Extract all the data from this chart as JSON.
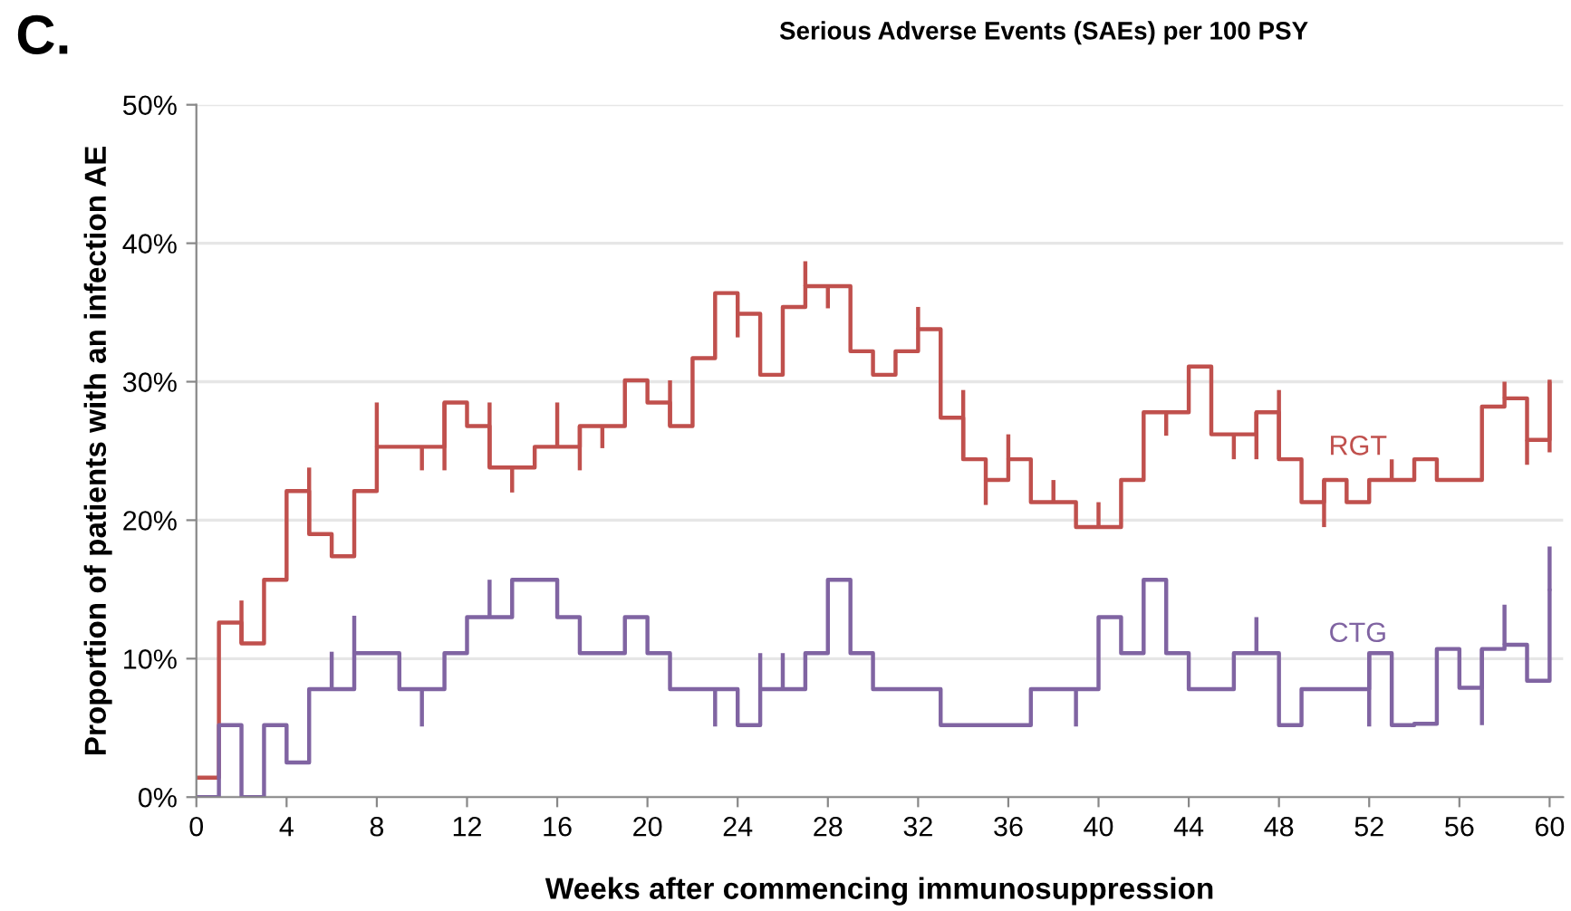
{
  "chart_data": {
    "type": "step",
    "title": "Serious Adverse Events (SAEs) per 100 PSY",
    "annotations": [
      "C."
    ],
    "xlabel": "Weeks after commencing immunosuppression",
    "ylabel": "Proportion of patients with an infection AE",
    "x": [
      0,
      1,
      2,
      3,
      4,
      5,
      6,
      7,
      8,
      9,
      10,
      11,
      12,
      13,
      14,
      15,
      16,
      17,
      18,
      19,
      20,
      21,
      22,
      23,
      24,
      25,
      26,
      27,
      28,
      29,
      30,
      31,
      32,
      33,
      34,
      35,
      36,
      37,
      38,
      39,
      40,
      41,
      42,
      43,
      44,
      45,
      46,
      47,
      48,
      49,
      50,
      51,
      52,
      53,
      54,
      55,
      56,
      57,
      58,
      59,
      60
    ],
    "series": [
      {
        "name": "RGT",
        "color": "#c0504d",
        "values": [
          1.4,
          12.6,
          11.1,
          15.7,
          22.1,
          19.0,
          17.4,
          22.1,
          25.3,
          25.3,
          25.3,
          28.5,
          26.8,
          23.8,
          23.8,
          25.3,
          25.3,
          26.8,
          26.8,
          30.1,
          28.5,
          26.8,
          31.7,
          36.4,
          34.9,
          30.5,
          35.4,
          36.9,
          36.9,
          32.2,
          30.5,
          32.2,
          33.8,
          27.4,
          24.4,
          22.9,
          24.4,
          21.3,
          21.3,
          19.5,
          19.5,
          22.9,
          27.8,
          27.8,
          31.1,
          26.2,
          26.2,
          27.8,
          24.4,
          21.3,
          22.9,
          21.3,
          22.9,
          22.9,
          24.4,
          22.9,
          22.9,
          28.2,
          28.8,
          25.8,
          30.0
        ],
        "errors": [
          null,
          null,
          [
            11.1,
            14.2
          ],
          null,
          null,
          [
            19.0,
            23.8
          ],
          null,
          null,
          [
            25.3,
            28.5
          ],
          null,
          [
            23.6,
            25.3
          ],
          [
            23.6,
            28.5
          ],
          null,
          [
            23.8,
            28.5
          ],
          [
            22.0,
            23.8
          ],
          null,
          [
            25.3,
            28.5
          ],
          [
            23.6,
            26.8
          ],
          [
            25.2,
            26.8
          ],
          null,
          null,
          [
            26.8,
            30.1
          ],
          null,
          null,
          [
            33.2,
            34.9
          ],
          null,
          null,
          [
            36.9,
            38.7
          ],
          [
            35.3,
            36.9
          ],
          null,
          null,
          null,
          [
            33.8,
            35.4
          ],
          null,
          [
            24.4,
            29.4
          ],
          [
            21.1,
            22.9
          ],
          [
            24.4,
            26.2
          ],
          null,
          [
            21.3,
            22.9
          ],
          null,
          [
            19.5,
            21.3
          ],
          null,
          null,
          [
            26.1,
            27.8
          ],
          null,
          null,
          [
            24.4,
            26.2
          ],
          [
            24.4,
            27.8
          ],
          [
            24.4,
            29.4
          ],
          null,
          [
            19.5,
            22.9
          ],
          null,
          null,
          [
            22.9,
            24.4
          ],
          null,
          null,
          null,
          null,
          [
            28.8,
            30.0
          ],
          [
            24.0,
            25.8
          ],
          [
            24.9,
            30.0
          ]
        ]
      },
      {
        "name": "CTG",
        "color": "#8064a2",
        "values": [
          0,
          5.2,
          0,
          5.2,
          2.5,
          7.8,
          7.8,
          10.4,
          10.4,
          7.8,
          7.8,
          10.4,
          13.0,
          13.0,
          15.7,
          15.7,
          13.0,
          10.4,
          10.4,
          13.0,
          10.4,
          7.8,
          7.8,
          7.8,
          5.2,
          7.8,
          7.8,
          10.4,
          15.7,
          10.4,
          7.8,
          7.8,
          7.8,
          5.2,
          5.2,
          5.2,
          5.2,
          7.8,
          7.8,
          7.8,
          13.0,
          10.4,
          15.7,
          10.4,
          7.8,
          7.8,
          10.4,
          10.4,
          5.2,
          7.8,
          7.8,
          7.8,
          10.4,
          5.2,
          5.3,
          10.7,
          7.9,
          10.7,
          11.0,
          8.4,
          14.9
        ],
        "errors": [
          null,
          null,
          null,
          null,
          null,
          null,
          [
            7.8,
            10.5
          ],
          [
            10.4,
            13.1
          ],
          null,
          null,
          [
            5.1,
            7.8
          ],
          null,
          null,
          [
            13.0,
            15.7
          ],
          null,
          null,
          null,
          null,
          null,
          null,
          null,
          null,
          null,
          [
            5.1,
            7.8
          ],
          null,
          [
            7.8,
            10.4
          ],
          [
            7.8,
            10.4
          ],
          null,
          null,
          null,
          null,
          null,
          null,
          null,
          null,
          null,
          null,
          null,
          null,
          [
            5.1,
            7.8
          ],
          null,
          null,
          null,
          null,
          null,
          null,
          null,
          [
            10.4,
            13.0
          ],
          null,
          null,
          null,
          null,
          [
            5.1,
            10.4
          ],
          null,
          null,
          null,
          null,
          [
            5.2,
            10.7
          ],
          [
            11.0,
            13.9
          ],
          null,
          [
            14.9,
            18.1
          ]
        ]
      }
    ],
    "xlim": [
      0,
      60.6
    ],
    "xticks": [
      0,
      4,
      8,
      12,
      16,
      20,
      24,
      28,
      32,
      36,
      40,
      44,
      48,
      52,
      56,
      60
    ],
    "ylim": [
      0,
      50
    ],
    "yticks": [
      {
        "value": 0,
        "label": "0%"
      },
      {
        "value": 10,
        "label": "10%"
      },
      {
        "value": 20,
        "label": "20%"
      },
      {
        "value": 30,
        "label": "30%"
      },
      {
        "value": 40,
        "label": "40%"
      },
      {
        "value": 50,
        "label": "50%"
      }
    ],
    "grid": "y",
    "legend": false,
    "line_style": "solid",
    "marker": "none"
  }
}
